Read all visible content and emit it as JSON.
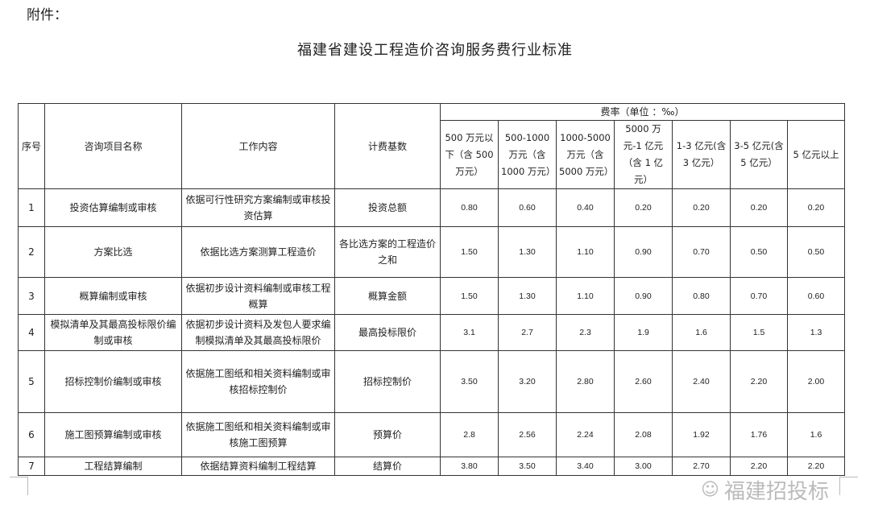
{
  "attachment_label": "附件：",
  "title": "福建省建设工程造价咨询服务费行业标准",
  "headers": {
    "no": "序号",
    "name": "咨询项目名称",
    "content": "工作内容",
    "base": "计费基数",
    "rate": "费率（单位 ：‰）",
    "ranges": [
      "500 万元以下（含 500 万元）",
      "500-1000 万元（含 1000 万元）",
      "1000-5000 万元（含 5000 万元）",
      "5000 万元-1 亿元（含 1 亿元）",
      "1-3 亿元(含 3 亿元）",
      "3-5 亿元(含 5 亿元）",
      "5 亿元以上"
    ]
  },
  "rows": [
    {
      "no": "1",
      "name": "投资估算编制或审核",
      "content": "依据可行性研究方案编制或审核投资估算",
      "base": "投资总额",
      "rates": [
        "0.80",
        "0.60",
        "0.40",
        "0.20",
        "0.20",
        "0.20",
        "0.20"
      ]
    },
    {
      "no": "2",
      "name": "方案比选",
      "content": "依据比选方案测算工程造价",
      "base": "各比选方案的工程造价之和",
      "rates": [
        "1.50",
        "1.30",
        "1.10",
        "0.90",
        "0.70",
        "0.50",
        "0.50"
      ]
    },
    {
      "no": "3",
      "name": "概算编制或审核",
      "content": "依据初步设计资料编制或审核工程概算",
      "base": "概算金额",
      "rates": [
        "1.50",
        "1.30",
        "1.10",
        "0.90",
        "0.80",
        "0.70",
        "0.60"
      ]
    },
    {
      "no": "4",
      "name": "模拟清单及其最高投标限价编制或审核",
      "content": "依据初步设计资料及发包人要求编制模拟清单及其最高投标限价",
      "base": "最高投标限价",
      "rates": [
        "3.1",
        "2.7",
        "2.3",
        "1.9",
        "1.6",
        "1.5",
        "1.3"
      ]
    },
    {
      "no": "5",
      "name": "招标控制价编制或审核",
      "content": "依据施工图纸和相关资料编制或审核招标控制价",
      "base": "招标控制价",
      "rates": [
        "3.50",
        "3.20",
        "2.80",
        "2.60",
        "2.40",
        "2.20",
        "2.00"
      ]
    },
    {
      "no": "6",
      "name": "施工图预算编制或审核",
      "content": "依据施工图纸和相关资料编制或审核施工图预算",
      "base": "预算价",
      "rates": [
        "2.8",
        "2.56",
        "2.24",
        "2.08",
        "1.92",
        "1.76",
        "1.6"
      ]
    },
    {
      "no": "7",
      "name": "工程结算编制",
      "content": "依据结算资料编制工程结算",
      "base": "结算价",
      "rates": [
        "3.80",
        "3.50",
        "3.40",
        "3.00",
        "2.70",
        "2.20",
        "2.20"
      ]
    }
  ],
  "watermark": "福建招投标"
}
